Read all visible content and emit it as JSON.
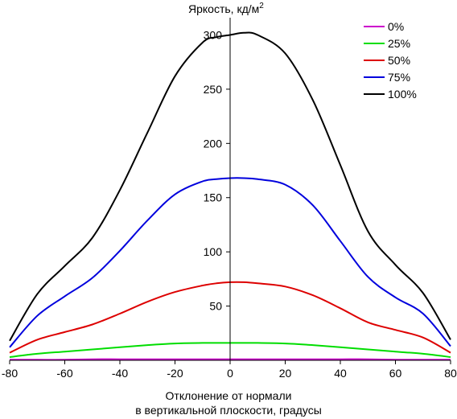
{
  "chart_data": {
    "type": "line",
    "title": "",
    "ylabel": "Яркость, кд/м",
    "ylabel_sup": "2",
    "xlabel_line1": "Отклонение от нормали",
    "xlabel_line2": "в вертикальной плоскости, градусы",
    "xlim": [
      -80,
      80
    ],
    "ylim": [
      0,
      310
    ],
    "x_ticks": [
      -80,
      -60,
      -40,
      -20,
      0,
      20,
      40,
      60,
      80
    ],
    "x_tick_labels": [
      "-80",
      "-60",
      "-40",
      "-20",
      "0",
      "20",
      "40",
      "60",
      "80"
    ],
    "y_ticks": [
      50,
      100,
      150,
      200,
      250,
      300
    ],
    "y_tick_labels": [
      "50",
      "100",
      "150",
      "200",
      "250",
      "300"
    ],
    "grid": false,
    "legend_position": "top-right",
    "x": [
      -80,
      -70,
      -60,
      -50,
      -40,
      -30,
      -20,
      -10,
      -5,
      0,
      5,
      10,
      20,
      30,
      40,
      50,
      60,
      70,
      80
    ],
    "series": [
      {
        "name": "0%",
        "color": "#cc00cc",
        "values": [
          0.5,
          0.5,
          0.5,
          1,
          1,
          1,
          1,
          1,
          1,
          1,
          1,
          1,
          1,
          1,
          1,
          1,
          0.5,
          0.5,
          0.5
        ]
      },
      {
        "name": "25%",
        "color": "#00dd00",
        "values": [
          3,
          6,
          8,
          10,
          12,
          14,
          15.5,
          16,
          16,
          16,
          16,
          16,
          15.5,
          14,
          12,
          10,
          8,
          6,
          3
        ]
      },
      {
        "name": "50%",
        "color": "#dd0000",
        "values": [
          7,
          19,
          26,
          33,
          43,
          54,
          63,
          69,
          71,
          72,
          72,
          71,
          68,
          60,
          48,
          35,
          28,
          21,
          7
        ]
      },
      {
        "name": "75%",
        "color": "#0000dd",
        "values": [
          12,
          41,
          59,
          76,
          101,
          129,
          153,
          165,
          167,
          168,
          168,
          167,
          162,
          143,
          110,
          77,
          58,
          43,
          13
        ]
      },
      {
        "name": "100%",
        "color": "#000000",
        "values": [
          18,
          61,
          87,
          113,
          157,
          210,
          262,
          293,
          298,
          300,
          302,
          300,
          283,
          240,
          180,
          119,
          88,
          62,
          19
        ]
      }
    ]
  }
}
